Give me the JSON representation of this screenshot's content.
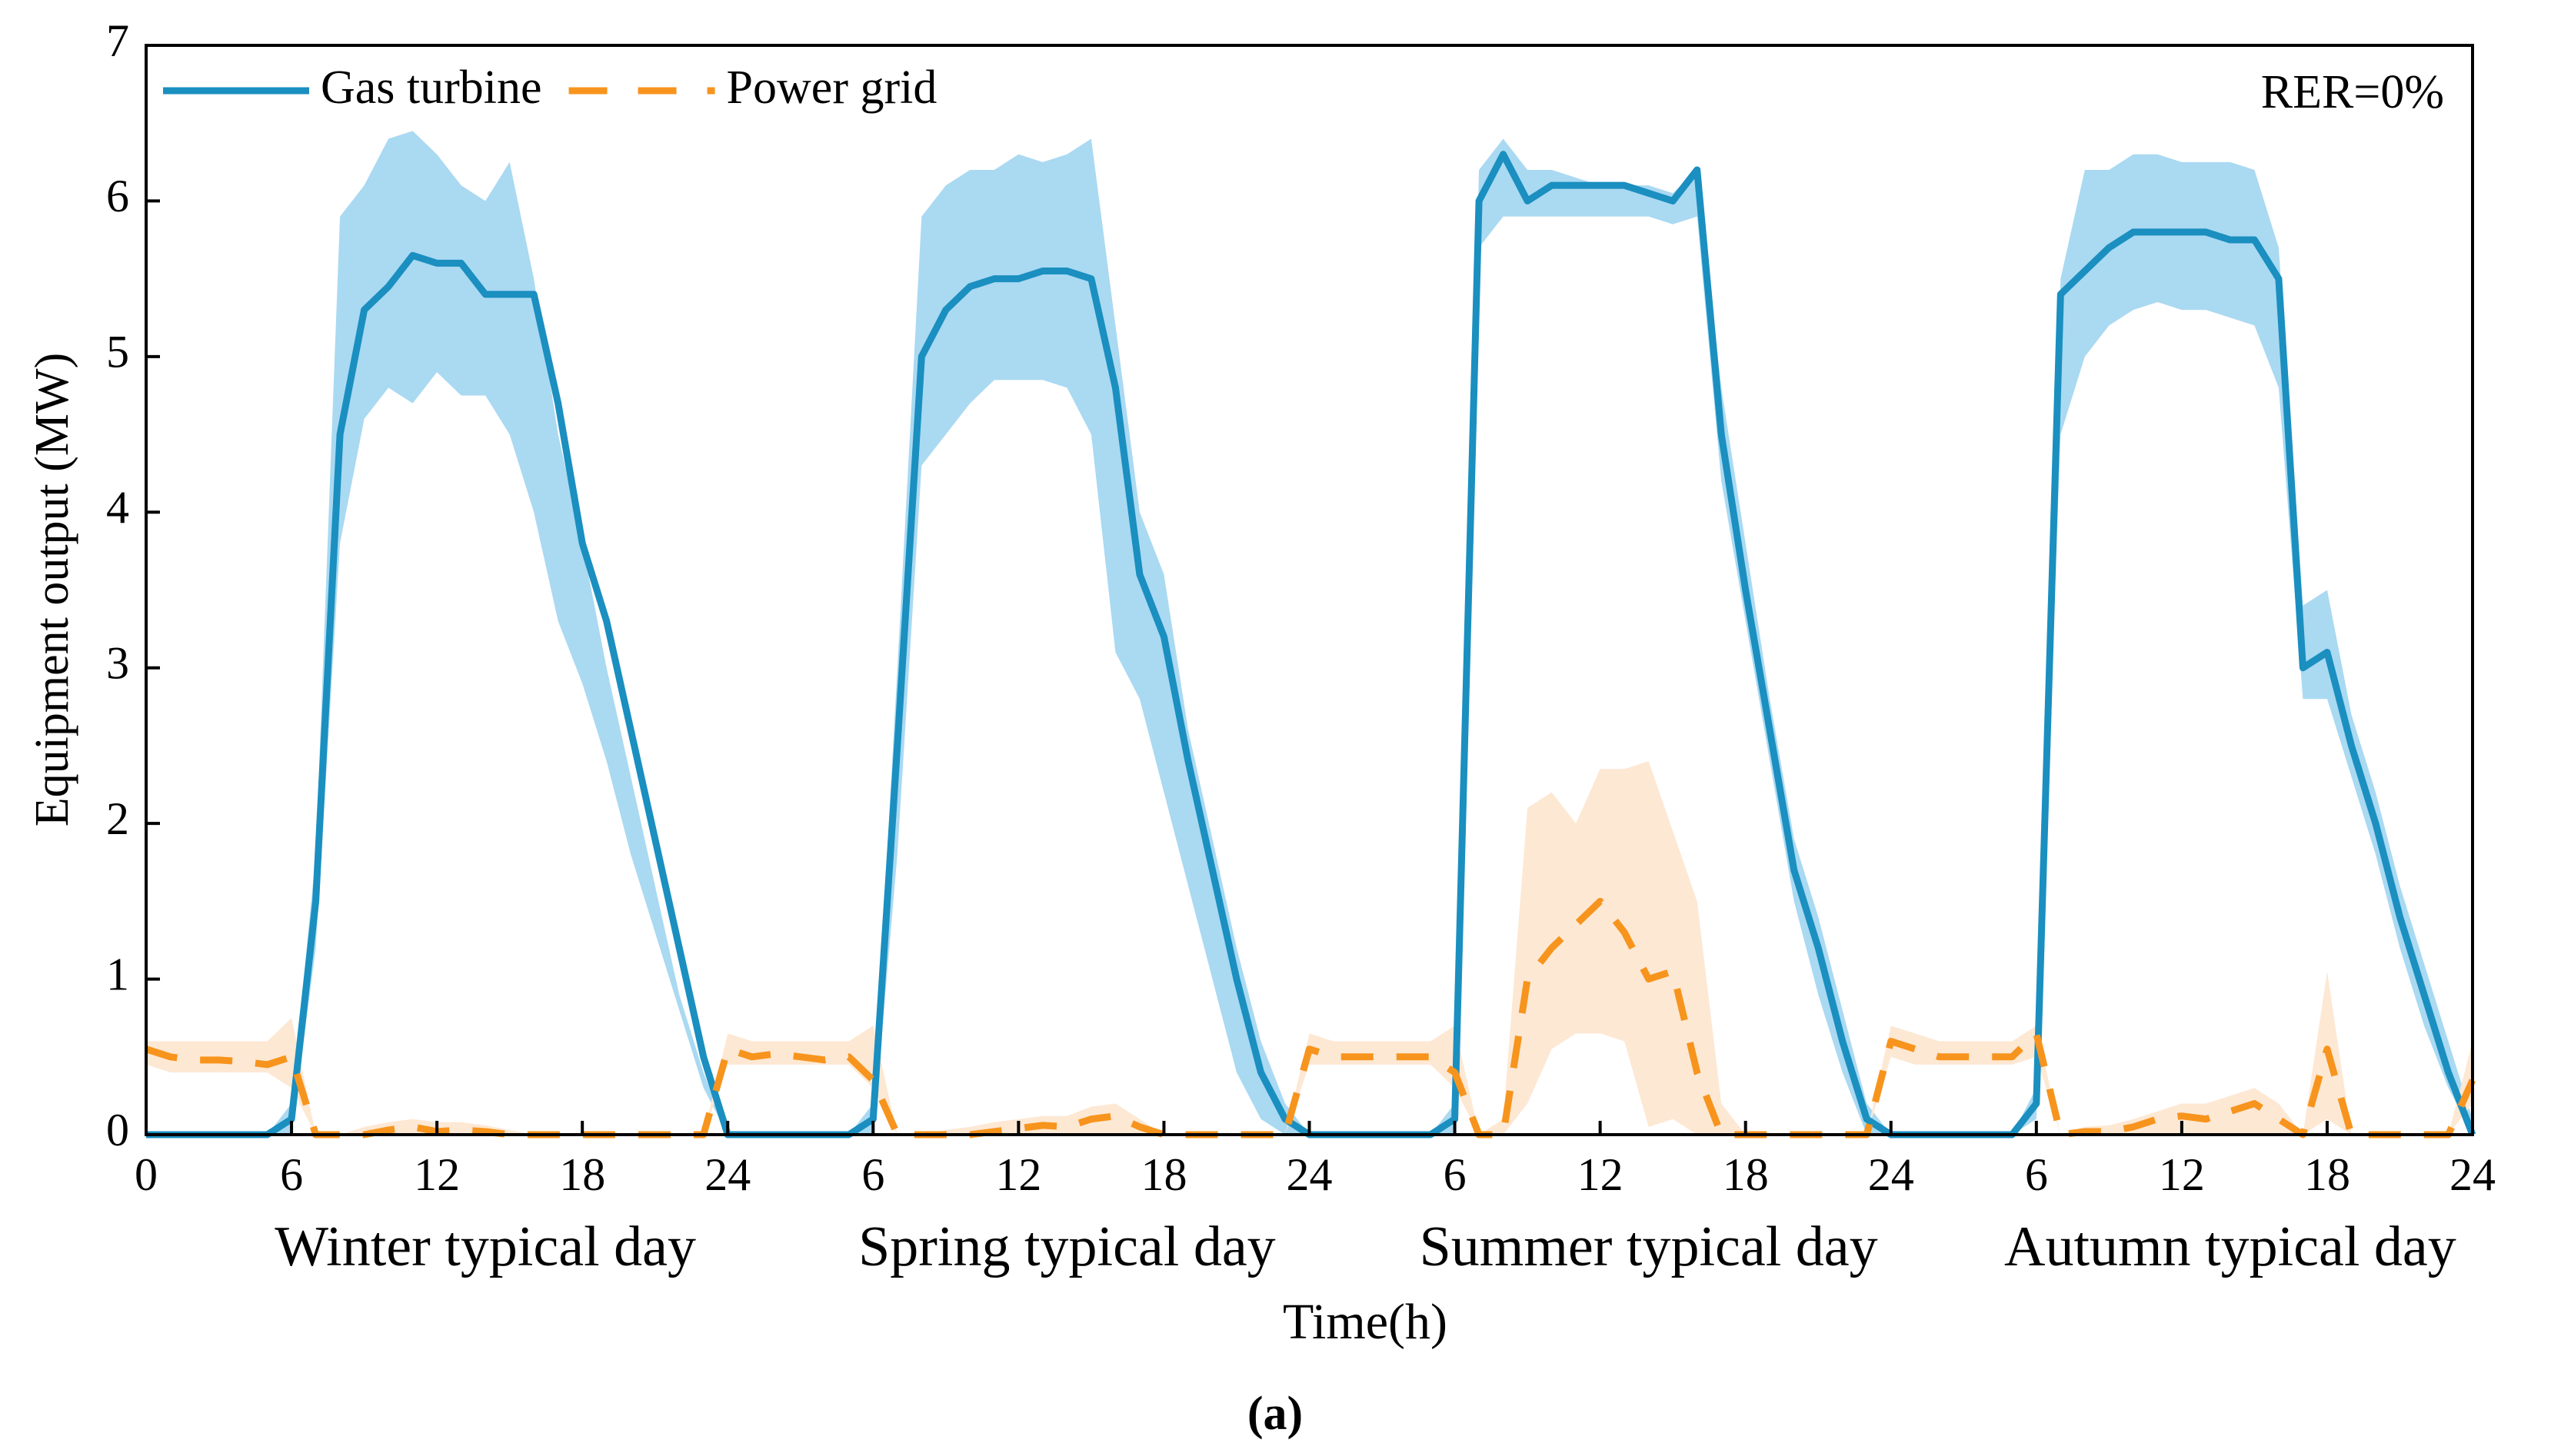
{
  "chart_data": {
    "type": "line",
    "caption": "(a)",
    "xlabel": "Time(h)",
    "ylabel": "Equipment output (MW)",
    "annotation": "RER=0%",
    "day_labels": [
      "Winter typical day",
      "Spring typical day",
      "Summer typical day",
      "Autumn typical day"
    ],
    "xlim": [
      0,
      96
    ],
    "ylim": [
      0,
      7
    ],
    "yticks": [
      0,
      1,
      2,
      3,
      4,
      5,
      6,
      7
    ],
    "xticks": [
      0,
      6,
      12,
      18,
      24,
      {
        "value": 30,
        "label": "6"
      },
      {
        "value": 36,
        "label": "12"
      },
      {
        "value": 42,
        "label": "18"
      },
      {
        "value": 48,
        "label": "24"
      },
      {
        "value": 54,
        "label": "6"
      },
      {
        "value": 60,
        "label": "12"
      },
      {
        "value": 66,
        "label": "18"
      },
      {
        "value": 72,
        "label": "24"
      },
      {
        "value": 78,
        "label": "6"
      },
      {
        "value": 84,
        "label": "12"
      },
      {
        "value": 90,
        "label": "18"
      },
      {
        "value": 96,
        "label": "24"
      }
    ],
    "legend": "upper left",
    "x": [
      0,
      1,
      2,
      3,
      4,
      5,
      6,
      7,
      8,
      9,
      10,
      11,
      12,
      13,
      14,
      15,
      16,
      17,
      18,
      19,
      20,
      21,
      22,
      23,
      24,
      25,
      26,
      27,
      28,
      29,
      30,
      31,
      32,
      33,
      34,
      35,
      36,
      37,
      38,
      39,
      40,
      41,
      42,
      43,
      44,
      45,
      46,
      47,
      48,
      49,
      50,
      51,
      52,
      53,
      54,
      55,
      56,
      57,
      58,
      59,
      60,
      61,
      62,
      63,
      64,
      65,
      66,
      67,
      68,
      69,
      70,
      71,
      72,
      73,
      74,
      75,
      76,
      77,
      78,
      79,
      80,
      81,
      82,
      83,
      84,
      85,
      86,
      87,
      88,
      89,
      90,
      91,
      92,
      93,
      94,
      95,
      96
    ],
    "series": [
      {
        "name": "Gas turbine",
        "color": "#1a8fc0",
        "band_color": "#aad9f2",
        "dashed": false,
        "values": [
          0,
          0,
          0,
          0,
          0,
          0,
          0.1,
          1.5,
          4.5,
          5.3,
          5.45,
          5.65,
          5.6,
          5.6,
          5.4,
          5.4,
          5.4,
          4.7,
          3.8,
          3.3,
          2.6,
          1.9,
          1.2,
          0.5,
          0,
          0,
          0,
          0,
          0,
          0,
          0.1,
          2.5,
          5.0,
          5.3,
          5.45,
          5.5,
          5.5,
          5.55,
          5.55,
          5.5,
          4.8,
          3.6,
          3.2,
          2.4,
          1.7,
          1.0,
          0.4,
          0.1,
          0,
          0,
          0,
          0,
          0,
          0,
          0.1,
          6.0,
          6.3,
          6.0,
          6.1,
          6.1,
          6.1,
          6.1,
          6.05,
          6.0,
          6.2,
          4.5,
          3.5,
          2.6,
          1.7,
          1.2,
          0.6,
          0.1,
          0,
          0,
          0,
          0,
          0,
          0,
          0.2,
          5.4,
          5.55,
          5.7,
          5.8,
          5.8,
          5.8,
          5.8,
          5.75,
          5.75,
          5.5,
          3.0,
          3.1,
          2.5,
          2.0,
          1.4,
          0.9,
          0.4,
          0
        ],
        "upper": [
          0,
          0,
          0,
          0,
          0,
          0,
          0.2,
          1.8,
          5.9,
          6.1,
          6.4,
          6.45,
          6.3,
          6.1,
          6.0,
          6.25,
          5.5,
          4.5,
          3.8,
          3.0,
          2.3,
          1.6,
          0.9,
          0.4,
          0,
          0,
          0,
          0,
          0,
          0,
          0.2,
          3.0,
          5.9,
          6.1,
          6.2,
          6.2,
          6.3,
          6.25,
          6.3,
          6.4,
          5.2,
          4.0,
          3.6,
          2.6,
          1.9,
          1.2,
          0.6,
          0.2,
          0,
          0,
          0,
          0,
          0,
          0,
          0.2,
          6.2,
          6.4,
          6.2,
          6.2,
          6.15,
          6.1,
          6.1,
          6.1,
          6.05,
          6.2,
          4.8,
          3.8,
          2.8,
          1.9,
          1.4,
          0.8,
          0.2,
          0,
          0,
          0,
          0,
          0,
          0,
          0.3,
          5.5,
          6.2,
          6.2,
          6.3,
          6.3,
          6.25,
          6.25,
          6.25,
          6.2,
          5.7,
          3.4,
          3.5,
          2.7,
          2.2,
          1.6,
          1.1,
          0.6,
          0.1
        ],
        "lower": [
          0,
          0,
          0,
          0,
          0,
          0,
          0,
          1.2,
          3.8,
          4.6,
          4.8,
          4.7,
          4.9,
          4.75,
          4.75,
          4.5,
          4.0,
          3.3,
          2.9,
          2.4,
          1.8,
          1.3,
          0.8,
          0.3,
          0,
          0,
          0,
          0,
          0,
          0,
          0,
          1.8,
          4.3,
          4.5,
          4.7,
          4.85,
          4.85,
          4.85,
          4.8,
          4.5,
          3.1,
          2.8,
          2.2,
          1.6,
          1.0,
          0.4,
          0.1,
          0,
          0,
          0,
          0,
          0,
          0,
          0,
          0,
          5.7,
          5.9,
          5.9,
          5.9,
          5.9,
          5.9,
          5.9,
          5.9,
          5.85,
          5.9,
          4.2,
          3.3,
          2.4,
          1.5,
          0.9,
          0.4,
          0,
          0,
          0,
          0,
          0,
          0,
          0,
          0.1,
          4.5,
          5.0,
          5.2,
          5.3,
          5.35,
          5.3,
          5.3,
          5.25,
          5.2,
          4.8,
          2.8,
          2.8,
          2.3,
          1.8,
          1.2,
          0.7,
          0.3,
          0
        ]
      },
      {
        "name": "Power grid",
        "color": "#f7941d",
        "band_color": "#fde8d4",
        "dashed": true,
        "values": [
          0.55,
          0.5,
          0.48,
          0.48,
          0.47,
          0.45,
          0.5,
          0,
          0,
          0,
          0.03,
          0.05,
          0.02,
          0.03,
          0.02,
          0,
          0,
          0,
          0,
          0,
          0,
          0,
          0,
          0,
          0.55,
          0.5,
          0.52,
          0.5,
          0.48,
          0.5,
          0.35,
          0,
          0,
          0,
          0,
          0.02,
          0.04,
          0.06,
          0.05,
          0.1,
          0.12,
          0.05,
          0,
          0,
          0,
          0,
          0,
          0,
          0.55,
          0.5,
          0.5,
          0.5,
          0.5,
          0.5,
          0.4,
          0,
          0,
          1.0,
          1.2,
          1.35,
          1.5,
          1.3,
          1.0,
          1.05,
          0.4,
          0,
          0,
          0,
          0,
          0,
          0,
          0,
          0.6,
          0.55,
          0.5,
          0.5,
          0.5,
          0.5,
          0.65,
          0,
          0.02,
          0.02,
          0.05,
          0.1,
          0.12,
          0.1,
          0.15,
          0.2,
          0.1,
          0,
          0.55,
          0,
          0,
          0,
          0,
          0,
          0.35
        ],
        "upper": [
          0.6,
          0.6,
          0.6,
          0.6,
          0.6,
          0.6,
          0.75,
          0,
          0,
          0.05,
          0.08,
          0.1,
          0.08,
          0.08,
          0.06,
          0.03,
          0,
          0,
          0,
          0,
          0,
          0,
          0,
          0,
          0.65,
          0.6,
          0.6,
          0.6,
          0.6,
          0.6,
          0.7,
          0,
          0,
          0.03,
          0.05,
          0.08,
          0.1,
          0.12,
          0.12,
          0.18,
          0.2,
          0.1,
          0,
          0,
          0,
          0,
          0,
          0,
          0.65,
          0.6,
          0.6,
          0.6,
          0.6,
          0.6,
          0.7,
          0,
          0.1,
          2.1,
          2.2,
          2.0,
          2.35,
          2.35,
          2.4,
          1.95,
          1.5,
          0.2,
          0,
          0,
          0,
          0,
          0,
          0,
          0.7,
          0.65,
          0.6,
          0.6,
          0.6,
          0.6,
          0.7,
          0,
          0.05,
          0.06,
          0.1,
          0.15,
          0.2,
          0.2,
          0.25,
          0.3,
          0.2,
          0,
          1.05,
          0,
          0,
          0,
          0,
          0,
          0.6
        ],
        "lower": [
          0.45,
          0.4,
          0.4,
          0.4,
          0.4,
          0.4,
          0.3,
          0,
          0,
          0,
          0,
          0,
          0,
          0,
          0,
          0,
          0,
          0,
          0,
          0,
          0,
          0,
          0,
          0,
          0.45,
          0.45,
          0.45,
          0.45,
          0.45,
          0.45,
          0.3,
          0,
          0,
          0,
          0,
          0,
          0,
          0,
          0,
          0,
          0,
          0,
          0,
          0,
          0,
          0,
          0,
          0,
          0.45,
          0.45,
          0.45,
          0.45,
          0.45,
          0.45,
          0.3,
          0,
          0,
          0.2,
          0.55,
          0.65,
          0.65,
          0.6,
          0.05,
          0.1,
          0,
          0,
          0,
          0,
          0,
          0,
          0,
          0,
          0.5,
          0.45,
          0.45,
          0.45,
          0.45,
          0.45,
          0.5,
          0,
          0,
          0,
          0,
          0,
          0,
          0,
          0,
          0,
          0,
          0,
          0.1,
          0,
          0,
          0,
          0,
          0,
          0.2
        ]
      }
    ]
  }
}
